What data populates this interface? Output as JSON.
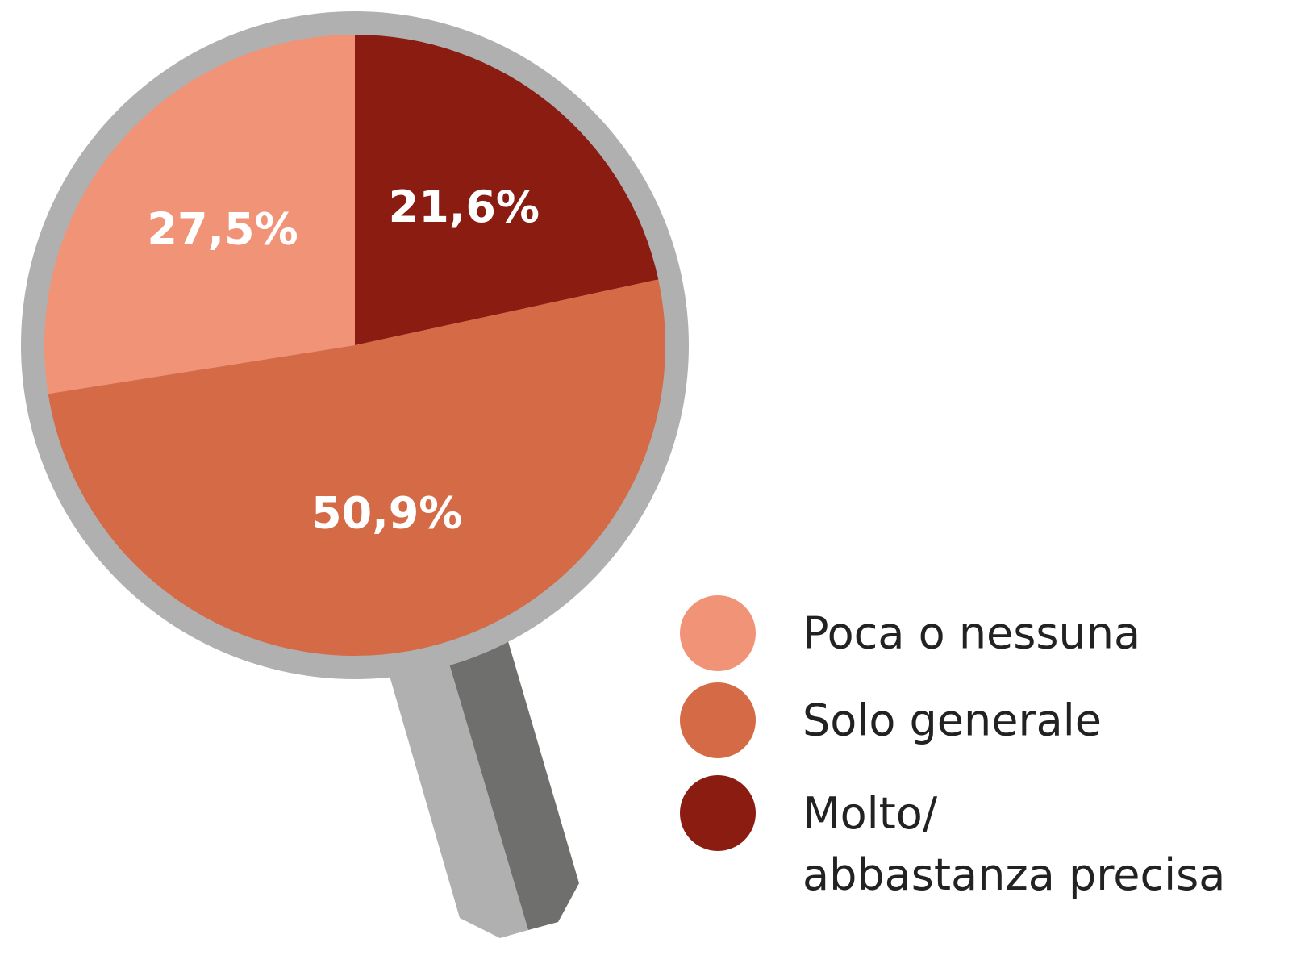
{
  "chart_data": {
    "type": "pie",
    "categories": [
      "Poca o nessuna",
      "Solo generale",
      "Molto/abbastanza precisa"
    ],
    "values": [
      27.5,
      50.9,
      21.6
    ],
    "value_labels": [
      "27,5%",
      "50,9%",
      "21,6%"
    ],
    "colors": [
      "#f09377",
      "#d46a46",
      "#8a1c11"
    ]
  }
}
